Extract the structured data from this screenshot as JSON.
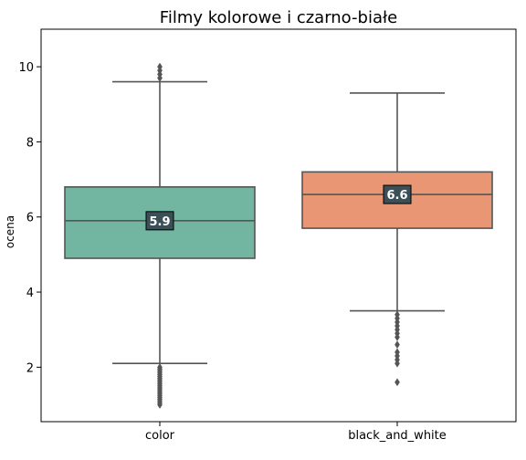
{
  "chart_data": {
    "type": "box",
    "title": "Filmy kolorowe i czarno-białe",
    "xlabel": "",
    "ylabel": "ocena",
    "ylim": [
      0.55,
      11.0
    ],
    "yticks": [
      2,
      4,
      6,
      8,
      10
    ],
    "grid": false,
    "categories": [
      "color",
      "black_and_white"
    ],
    "series": [
      {
        "category": "color",
        "color": "#72b6a1",
        "whisker_low": 2.1,
        "q1": 4.9,
        "median": 5.9,
        "q3": 6.8,
        "whisker_high": 9.6,
        "median_label": "5.9",
        "outliers": [
          1.0,
          1.05,
          1.1,
          1.15,
          1.2,
          1.25,
          1.3,
          1.35,
          1.4,
          1.45,
          1.5,
          1.55,
          1.6,
          1.65,
          1.7,
          1.75,
          1.8,
          1.85,
          1.9,
          1.95,
          2.0,
          9.7,
          9.8,
          9.9,
          10.0
        ]
      },
      {
        "category": "black_and_white",
        "color": "#e99675",
        "whisker_low": 3.5,
        "q1": 5.7,
        "median": 6.6,
        "q3": 7.2,
        "whisker_high": 9.3,
        "median_label": "6.6",
        "outliers": [
          1.6,
          2.1,
          2.2,
          2.3,
          2.4,
          2.6,
          2.8,
          2.9,
          3.0,
          3.1,
          3.2,
          3.3,
          3.4
        ]
      }
    ],
    "label_box_color": "#3b4f57"
  }
}
